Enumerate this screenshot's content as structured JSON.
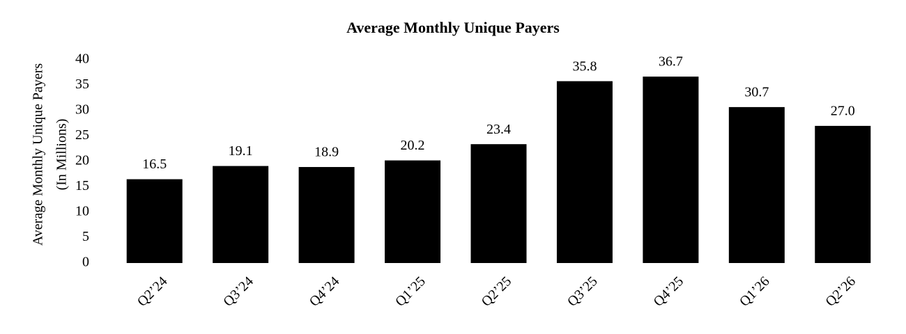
{
  "chart_data": {
    "type": "bar",
    "title": "Average Monthly Unique Payers",
    "y_label": [
      "Average Monthly Unique Payers",
      "(In Millions)"
    ],
    "categories": [
      "Q2’24",
      "Q3’24",
      "Q4’24",
      "Q1’25",
      "Q2’25",
      "Q3’25",
      "Q4’25",
      "Q1’26",
      "Q2’26"
    ],
    "values": [
      16.5,
      19.1,
      18.9,
      20.2,
      23.4,
      35.8,
      36.7,
      30.7,
      27.0
    ],
    "value_labels": [
      "16.5",
      "19.1",
      "18.9",
      "20.2",
      "23.4",
      "35.8",
      "36.7",
      "30.7",
      "27.0"
    ],
    "color": "#000000",
    "ylim": [
      0,
      40
    ],
    "yticks": [
      0,
      5,
      10,
      15,
      20,
      25,
      30,
      35,
      40
    ],
    "grid": false
  }
}
